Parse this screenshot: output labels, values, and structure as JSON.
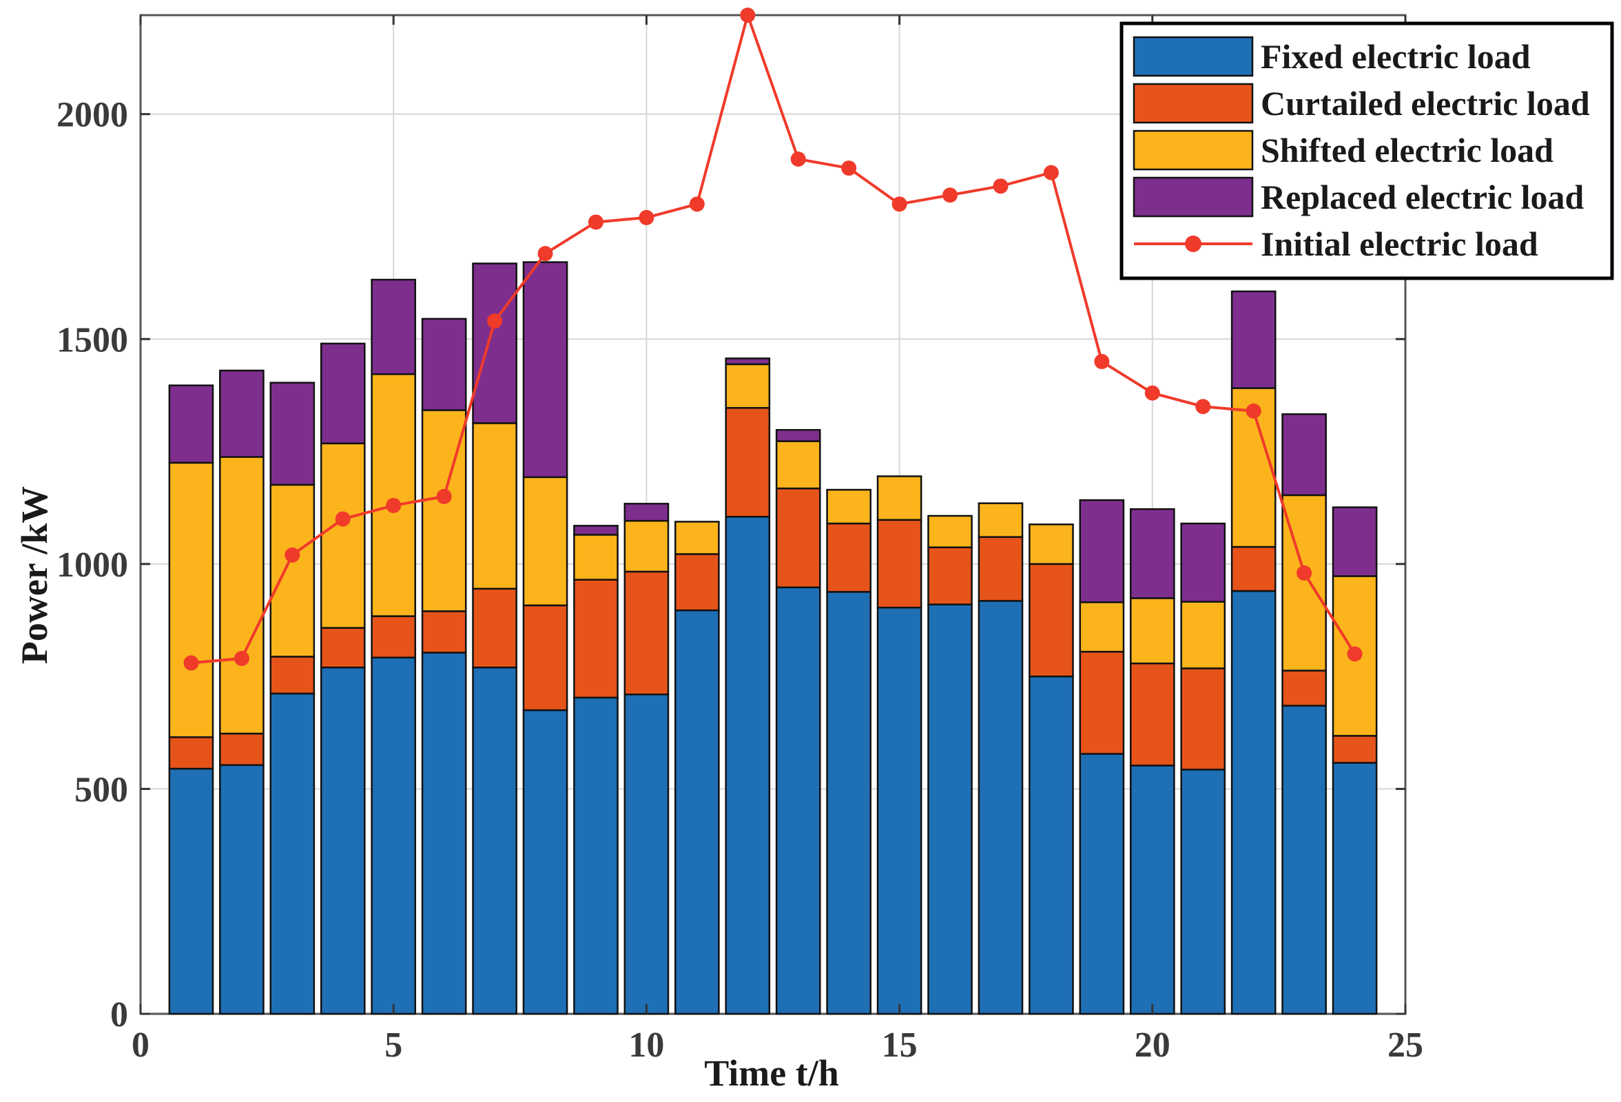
{
  "chart_data": {
    "type": "bar",
    "stacked": true,
    "xlabel": "Time t/h",
    "ylabel": "Power /kW",
    "xlim": [
      0,
      25
    ],
    "ylim": [
      0,
      2220
    ],
    "xticks": [
      0,
      5,
      10,
      15,
      20,
      25
    ],
    "yticks": [
      0,
      500,
      1000,
      1500,
      2000
    ],
    "grid": true,
    "legend_position": "top-right",
    "x": [
      1,
      2,
      3,
      4,
      5,
      6,
      7,
      8,
      9,
      10,
      11,
      12,
      13,
      14,
      15,
      16,
      17,
      18,
      19,
      20,
      21,
      22,
      23,
      24
    ],
    "series": [
      {
        "name": "Fixed electric load",
        "kind": "bar",
        "color": "#1f6fb5",
        "values": [
          545,
          553,
          712,
          770,
          792,
          803,
          770,
          675,
          703,
          710,
          897,
          1105,
          948,
          938,
          903,
          910,
          918,
          750,
          578,
          552,
          543,
          940,
          685,
          558
        ]
      },
      {
        "name": "Curtailed electric load",
        "kind": "bar",
        "color": "#e6541a",
        "values": [
          70,
          70,
          82,
          88,
          92,
          92,
          175,
          233,
          262,
          273,
          125,
          242,
          220,
          152,
          195,
          127,
          142,
          250,
          227,
          227,
          225,
          98,
          78,
          60
        ]
      },
      {
        "name": "Shifted electric load",
        "kind": "bar",
        "color": "#fbb41c",
        "values": [
          610,
          615,
          382,
          410,
          538,
          447,
          368,
          285,
          100,
          113,
          72,
          97,
          105,
          75,
          97,
          70,
          75,
          88,
          110,
          145,
          148,
          353,
          390,
          355
        ]
      },
      {
        "name": "Replaced electric load",
        "kind": "bar",
        "color": "#7e2f8e",
        "values": [
          172,
          192,
          227,
          222,
          210,
          203,
          355,
          478,
          20,
          38,
          0,
          13,
          25,
          0,
          0,
          0,
          0,
          0,
          227,
          198,
          174,
          215,
          180,
          153
        ]
      },
      {
        "name": "Initial electric load",
        "kind": "line",
        "color": "#f03a2a",
        "values": [
          780,
          790,
          1020,
          1100,
          1130,
          1150,
          1540,
          1690,
          1760,
          1770,
          1800,
          2220,
          1900,
          1880,
          1800,
          1820,
          1840,
          1870,
          1450,
          1380,
          1350,
          1340,
          980,
          800
        ]
      }
    ]
  }
}
